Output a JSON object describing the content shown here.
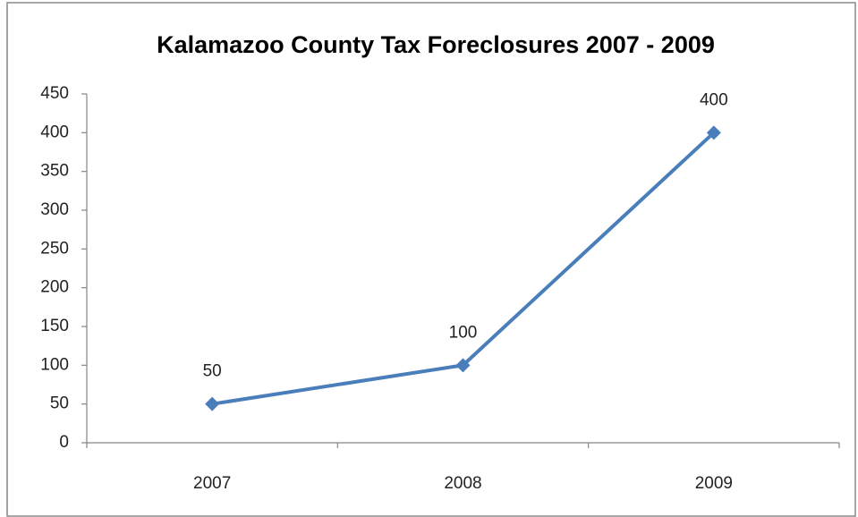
{
  "chart_data": {
    "type": "line",
    "title": "Kalamazoo County Tax Foreclosures 2007 - 2009",
    "categories": [
      "2007",
      "2008",
      "2009"
    ],
    "values": [
      50,
      100,
      400
    ],
    "color": "#4a7ebb",
    "ylim": [
      0,
      450
    ],
    "yticks": [
      0,
      50,
      100,
      150,
      200,
      250,
      300,
      350,
      400,
      450
    ],
    "grid": false
  }
}
